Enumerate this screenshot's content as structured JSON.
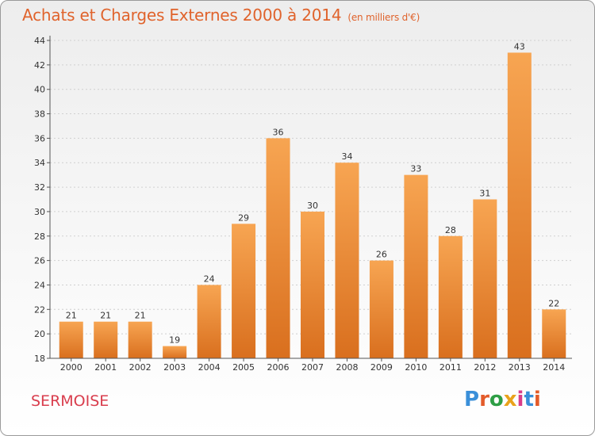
{
  "header": {
    "title": "Achats et Charges Externes 2000 à 2014",
    "unit": "(en milliers d'€)"
  },
  "footer": {
    "city": "SERMOISE",
    "logo_text": "Proxiti",
    "logo_colors": [
      "#3a8fd9",
      "#e35b2a",
      "#2e9e45",
      "#e9a21b",
      "#d93d8a",
      "#3a8fd9",
      "#e35b2a"
    ]
  },
  "colors": {
    "bar_top": "#f7a552",
    "bar_bottom": "#d96f1e",
    "title": "#e0632c",
    "city": "#d93d4d",
    "grid": "#d0d0d0"
  },
  "chart_data": {
    "type": "bar",
    "title": "Achats et Charges Externes 2000 à 2014",
    "subtitle": "(en milliers d'€)",
    "categories": [
      "2000",
      "2001",
      "2002",
      "2003",
      "2004",
      "2005",
      "2006",
      "2007",
      "2008",
      "2009",
      "2010",
      "2011",
      "2012",
      "2013",
      "2014"
    ],
    "values": [
      21,
      21,
      21,
      19,
      24,
      29,
      36,
      30,
      34,
      26,
      33,
      28,
      31,
      43,
      22
    ],
    "yticks": [
      18,
      20,
      22,
      24,
      26,
      28,
      30,
      32,
      34,
      36,
      38,
      40,
      42,
      44
    ],
    "ylim": [
      18,
      44
    ],
    "grid": "horizontal dotted"
  }
}
